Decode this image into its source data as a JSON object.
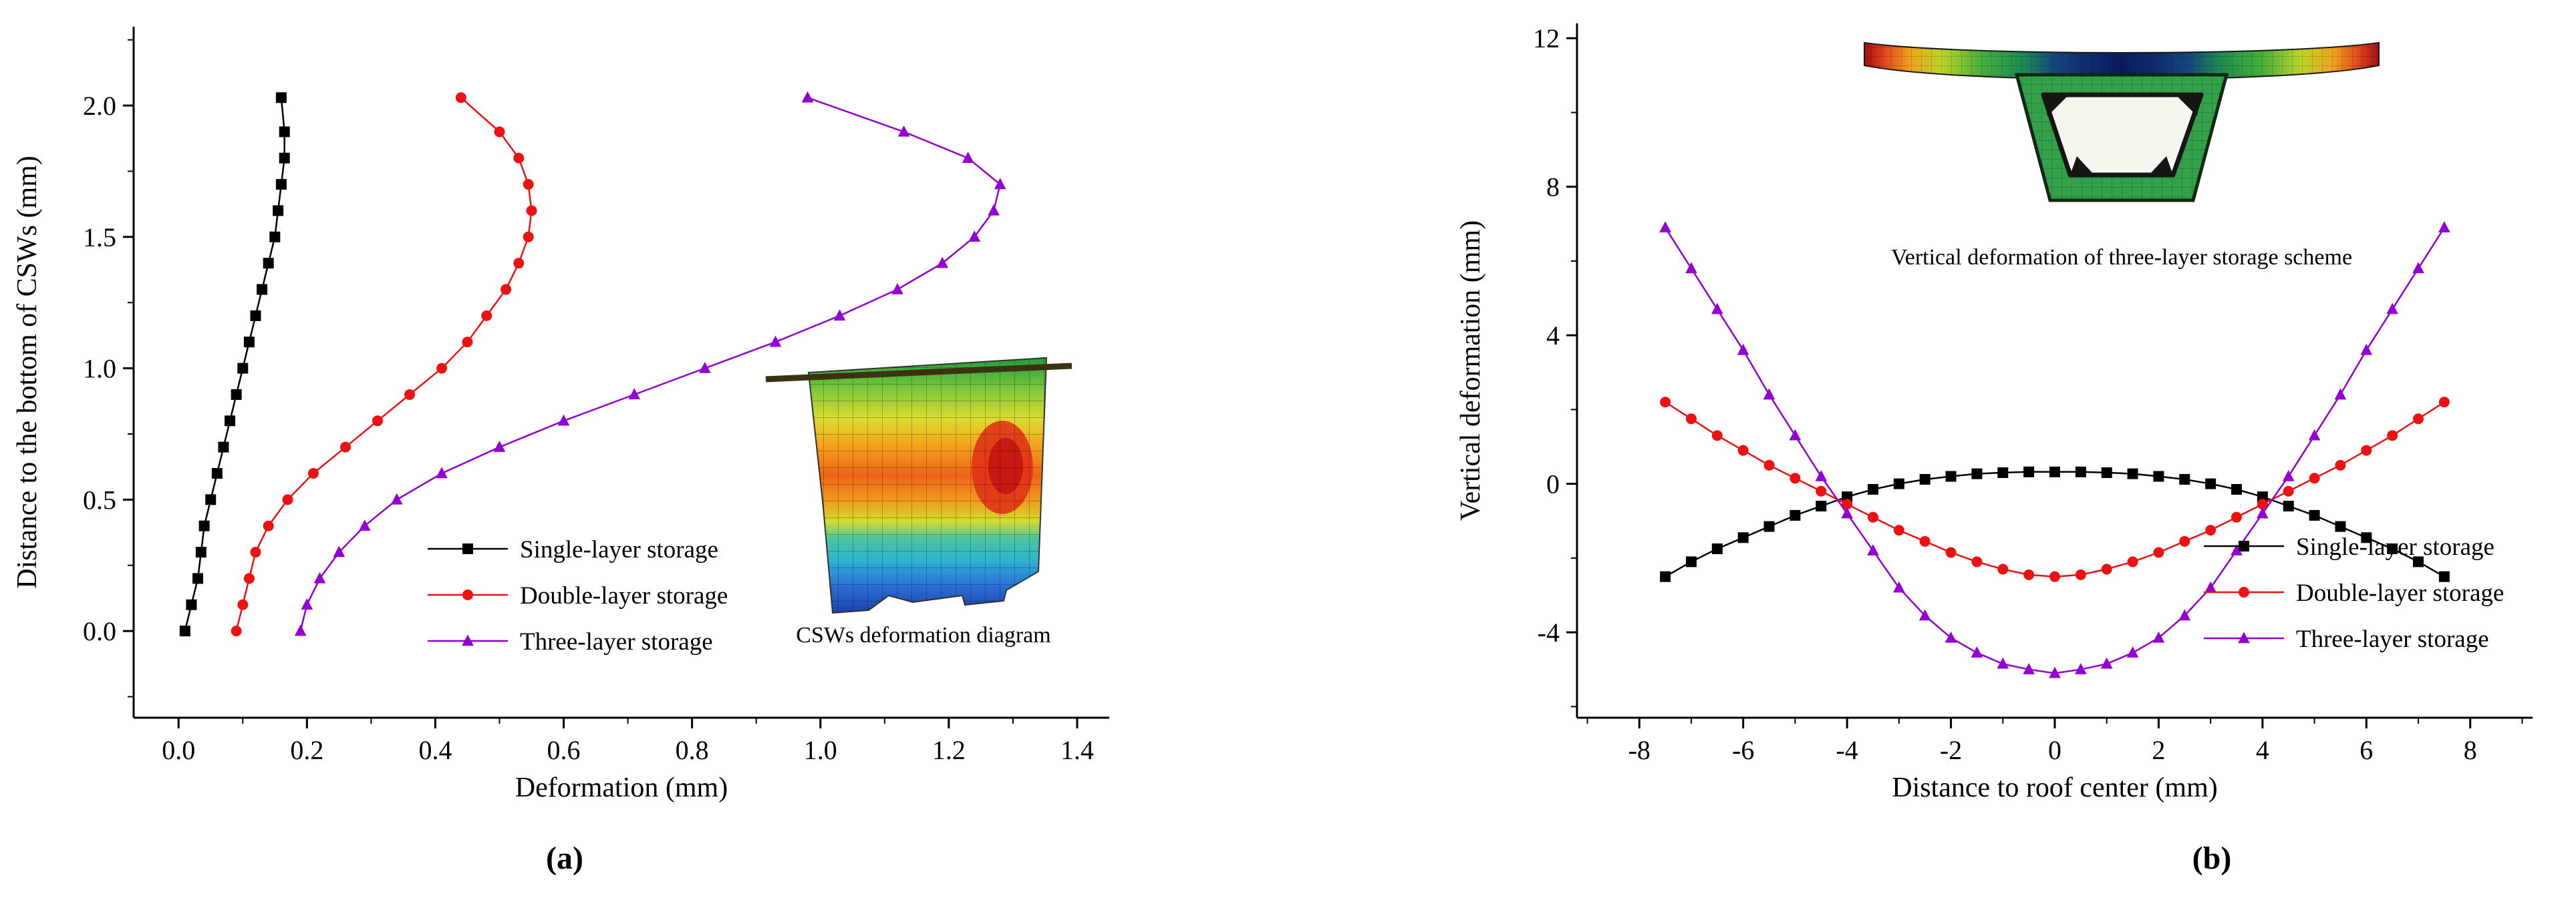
{
  "panels": [
    {
      "label": "(a)"
    },
    {
      "label": "(b)"
    }
  ],
  "chart_data": [
    {
      "id": "chart-a",
      "type": "line",
      "title": "",
      "xlabel": "Deformation (mm)",
      "ylabel": "Distance to the bottom of CSWs (mm)",
      "xlim": [
        -0.07,
        1.45
      ],
      "ylim": [
        -0.33,
        2.3
      ],
      "xticks": [
        0,
        0.2,
        0.4,
        0.6,
        0.8,
        1,
        1.2,
        1.4
      ],
      "xtick_labels": [
        "0.0",
        "0.2",
        "0.4",
        "0.6",
        "0.8",
        "1.0",
        "1.2",
        "1.4"
      ],
      "yticks": [
        0,
        0.5,
        1,
        1.5,
        2
      ],
      "ytick_labels": [
        "0.0",
        "0.5",
        "1.0",
        "1.5",
        "2.0"
      ],
      "grid": false,
      "legend_position": "inside lower-left",
      "series": [
        {
          "name": "Single-layer storage",
          "color": "#000000",
          "marker": "square",
          "x": [
            0.01,
            0.02,
            0.03,
            0.035,
            0.04,
            0.05,
            0.06,
            0.07,
            0.08,
            0.09,
            0.1,
            0.11,
            0.12,
            0.13,
            0.14,
            0.15,
            0.155,
            0.16,
            0.165,
            0.165,
            0.16
          ],
          "y": [
            0,
            0.1,
            0.2,
            0.3,
            0.4,
            0.5,
            0.6,
            0.7,
            0.8,
            0.9,
            1,
            1.1,
            1.2,
            1.3,
            1.4,
            1.5,
            1.6,
            1.7,
            1.8,
            1.9,
            2.03
          ]
        },
        {
          "name": "Double-layer storage",
          "color": "#ee1111",
          "marker": "circle",
          "x": [
            0.09,
            0.1,
            0.11,
            0.12,
            0.14,
            0.17,
            0.21,
            0.26,
            0.31,
            0.36,
            0.41,
            0.45,
            0.48,
            0.51,
            0.53,
            0.545,
            0.55,
            0.545,
            0.53,
            0.5,
            0.44
          ],
          "y": [
            0,
            0.1,
            0.2,
            0.3,
            0.4,
            0.5,
            0.6,
            0.7,
            0.8,
            0.9,
            1,
            1.1,
            1.2,
            1.3,
            1.4,
            1.5,
            1.6,
            1.7,
            1.8,
            1.9,
            2.03
          ]
        },
        {
          "name": "Three-layer storage",
          "color": "#9400d3",
          "marker": "triangle",
          "x": [
            0.19,
            0.2,
            0.22,
            0.25,
            0.29,
            0.34,
            0.41,
            0.5,
            0.6,
            0.71,
            0.82,
            0.93,
            1.03,
            1.12,
            1.19,
            1.24,
            1.27,
            1.28,
            1.23,
            1.13,
            0.98
          ],
          "y": [
            0,
            0.1,
            0.2,
            0.3,
            0.4,
            0.5,
            0.6,
            0.7,
            0.8,
            0.9,
            1,
            1.1,
            1.2,
            1.3,
            1.4,
            1.5,
            1.6,
            1.7,
            1.8,
            1.9,
            2.03
          ]
        }
      ],
      "inset": {
        "caption": "CSWs deformation diagram"
      }
    },
    {
      "id": "chart-b",
      "type": "line",
      "title": "",
      "xlabel": "Distance to roof center (mm)",
      "ylabel": "Vertical deformation (mm)",
      "xlim": [
        -9.2,
        9.2
      ],
      "ylim": [
        -6.3,
        12.4
      ],
      "xticks": [
        -8,
        -6,
        -4,
        -2,
        0,
        2,
        4,
        6,
        8
      ],
      "xtick_labels": [
        "-8",
        "-6",
        "-4",
        "-2",
        "0",
        "2",
        "4",
        "6",
        "8"
      ],
      "yticks": [
        -4,
        0,
        4,
        8,
        12
      ],
      "ytick_labels": [
        "-4",
        "0",
        "4",
        "8",
        "12"
      ],
      "grid": false,
      "legend_position": "inside lower-right",
      "series": [
        {
          "name": "Single-layer storage",
          "color": "#000000",
          "marker": "square",
          "x": [
            -7.5,
            -7,
            -6.5,
            -6,
            -5.5,
            -5,
            -4.5,
            -4,
            -3.5,
            -3,
            -2.5,
            -2,
            -1.5,
            -1,
            -0.5,
            0,
            0.5,
            1,
            1.5,
            2,
            2.5,
            3,
            3.5,
            4,
            4.5,
            5,
            5.5,
            6,
            6.5,
            7,
            7.5
          ],
          "y": [
            -2.5,
            -2.1,
            -1.75,
            -1.45,
            -1.15,
            -0.85,
            -0.6,
            -0.35,
            -0.15,
            0,
            0.12,
            0.2,
            0.27,
            0.3,
            0.32,
            0.32,
            0.32,
            0.3,
            0.27,
            0.2,
            0.12,
            0,
            -0.15,
            -0.35,
            -0.6,
            -0.85,
            -1.15,
            -1.45,
            -1.75,
            -2.1,
            -2.5
          ]
        },
        {
          "name": "Double-layer storage",
          "color": "#ee1111",
          "marker": "circle",
          "x": [
            -7.5,
            -7,
            -6.5,
            -6,
            -5.5,
            -5,
            -4.5,
            -4,
            -3.5,
            -3,
            -2.5,
            -2,
            -1.5,
            -1,
            -0.5,
            0,
            0.5,
            1,
            1.5,
            2,
            2.5,
            3,
            3.5,
            4,
            4.5,
            5,
            5.5,
            6,
            6.5,
            7,
            7.5
          ],
          "y": [
            2.2,
            1.75,
            1.3,
            0.9,
            0.5,
            0.15,
            -0.2,
            -0.55,
            -0.9,
            -1.25,
            -1.55,
            -1.85,
            -2.1,
            -2.3,
            -2.45,
            -2.5,
            -2.45,
            -2.3,
            -2.1,
            -1.85,
            -1.55,
            -1.25,
            -0.9,
            -0.55,
            -0.2,
            0.15,
            0.5,
            0.9,
            1.3,
            1.75,
            2.2
          ]
        },
        {
          "name": "Three-layer storage",
          "color": "#9400d3",
          "marker": "triangle",
          "x": [
            -7.5,
            -7,
            -6.5,
            -6,
            -5.5,
            -5,
            -4.5,
            -4,
            -3.5,
            -3,
            -2.5,
            -2,
            -1.5,
            -1,
            -0.5,
            0,
            0.5,
            1,
            1.5,
            2,
            2.5,
            3,
            3.5,
            4,
            4.5,
            5,
            5.5,
            6,
            6.5,
            7,
            7.5
          ],
          "y": [
            6.9,
            5.8,
            4.7,
            3.6,
            2.4,
            1.3,
            0.2,
            -0.8,
            -1.8,
            -2.8,
            -3.55,
            -4.15,
            -4.55,
            -4.85,
            -5,
            -5.1,
            -5,
            -4.85,
            -4.55,
            -4.15,
            -3.55,
            -2.8,
            -1.8,
            -0.8,
            0.2,
            1.3,
            2.4,
            3.6,
            4.7,
            5.8,
            6.9
          ]
        }
      ],
      "inset": {
        "caption": "Vertical deformation of three-layer storage scheme"
      }
    }
  ]
}
